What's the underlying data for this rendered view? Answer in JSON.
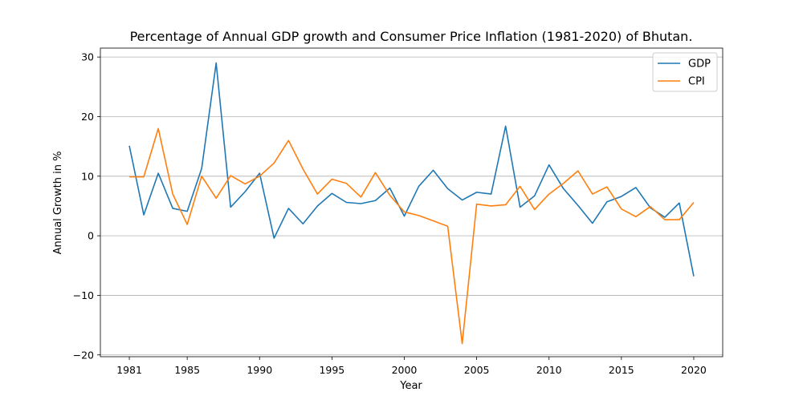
{
  "chart_data": {
    "type": "line",
    "title": "Percentage of Annual GDP growth and Consumer Price Inflation (1981-2020) of Bhutan.",
    "xlabel": "Year",
    "ylabel": "Annual Growth in %",
    "xlim": [
      1979.0,
      2022.0
    ],
    "ylim": [
      -20.3,
      31.5
    ],
    "grid": "y",
    "legend_position": "upper right",
    "x_ticks": [
      1981,
      1985,
      1990,
      1995,
      2000,
      2005,
      2010,
      2015,
      2020
    ],
    "x_tick_labels": [
      "1981",
      "1985",
      "1990",
      "1995",
      "2000",
      "2005",
      "2010",
      "2015",
      "2020"
    ],
    "y_ticks": [
      30,
      20,
      10,
      0,
      -10,
      -20
    ],
    "y_tick_labels": [
      "30",
      "20",
      "10",
      "0",
      "−10",
      "−20"
    ],
    "x": [
      1981,
      1982,
      1983,
      1984,
      1985,
      1986,
      1987,
      1988,
      1989,
      1990,
      1991,
      1992,
      1993,
      1994,
      1995,
      1996,
      1997,
      1998,
      1999,
      2000,
      2001,
      2002,
      2003,
      2004,
      2005,
      2006,
      2007,
      2008,
      2009,
      2010,
      2011,
      2012,
      2013,
      2014,
      2015,
      2016,
      2017,
      2018,
      2019,
      2020
    ],
    "series": [
      {
        "name": "GDP",
        "color": "#1f77b4",
        "values": [
          15.1,
          3.5,
          10.5,
          4.6,
          4.1,
          11.3,
          29.0,
          4.8,
          7.4,
          10.5,
          -0.4,
          4.6,
          2.0,
          5.0,
          7.1,
          5.6,
          5.4,
          5.9,
          8.0,
          3.3,
          8.3,
          11.0,
          7.9,
          6.0,
          7.3,
          7.0,
          18.4,
          4.8,
          6.7,
          11.9,
          7.9,
          5.1,
          2.1,
          5.7,
          6.6,
          8.1,
          4.7,
          3.1,
          5.5,
          -6.8
        ]
      },
      {
        "name": "CPI",
        "color": "#ff7f0e",
        "values": [
          9.9,
          9.9,
          18.0,
          7.0,
          1.9,
          10.0,
          6.3,
          10.1,
          8.7,
          10.0,
          12.2,
          16.0,
          11.2,
          7.0,
          9.5,
          8.8,
          6.5,
          10.6,
          6.8,
          4.0,
          3.4,
          2.5,
          1.6,
          -18.1,
          5.3,
          5.0,
          5.2,
          8.3,
          4.4,
          7.0,
          8.8,
          10.9,
          7.0,
          8.2,
          4.5,
          3.2,
          4.9,
          2.7,
          2.7,
          5.6
        ]
      }
    ]
  }
}
